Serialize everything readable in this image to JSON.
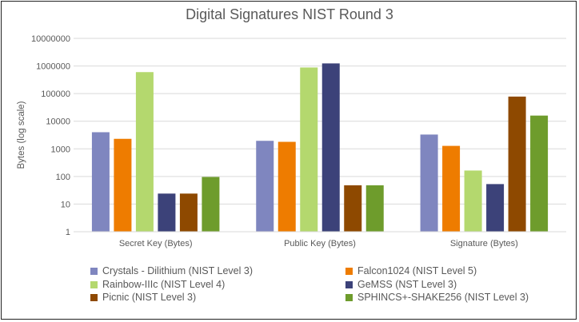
{
  "chart_data": {
    "type": "bar",
    "title": "Digital Signatures NIST Round 3",
    "xlabel": "",
    "ylabel": "Bytes (log scale)",
    "y_scale": "log",
    "ylim": [
      1,
      10000000
    ],
    "y_ticks": [
      "1",
      "10",
      "100",
      "1000",
      "10000",
      "100000",
      "1000000",
      "10000000"
    ],
    "grid": true,
    "legend_position": "bottom",
    "categories": [
      "Secret Key (Bytes)",
      "Public Key (Bytes)",
      "Signature (Bytes)"
    ],
    "series": [
      {
        "name": "Crystals - Dilithium (NIST Level 3)",
        "color": "#7f86bf",
        "values": [
          4000,
          1952,
          3293
        ]
      },
      {
        "name": "Falcon1024 (NIST Level 5)",
        "color": "#ee7c00",
        "values": [
          2305,
          1793,
          1280
        ]
      },
      {
        "name": "Rainbow-IIIc (NIST Level 4)",
        "color": "#b4d86e",
        "values": [
          600000,
          882080,
          164
        ]
      },
      {
        "name": "GeMSS (NST Level 3)",
        "color": "#3c4279",
        "values": [
          24,
          1237960,
          53
        ]
      },
      {
        "name": "Picnic (NIST Level 3)",
        "color": "#8e4900",
        "values": [
          24,
          48,
          78000
        ]
      },
      {
        "name": "SPHINCS+-SHAKE256 (NIST Level 3)",
        "color": "#6e9c2c",
        "values": [
          96,
          48,
          16000
        ]
      }
    ]
  }
}
